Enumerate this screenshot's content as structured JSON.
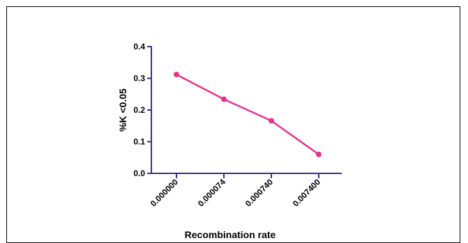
{
  "chart_data": {
    "type": "line",
    "title": "",
    "xlabel": "Recombination rate",
    "ylabel": "%K <0.05",
    "categories": [
      "0.000000",
      "0.000074",
      "0.000740",
      "0.007400"
    ],
    "series": [
      {
        "values": [
          0.312,
          0.234,
          0.166,
          0.06
        ],
        "color": "#e8338e"
      }
    ],
    "ylim": [
      0,
      0.4
    ],
    "yticks": [
      "0.0",
      "0.1",
      "0.2",
      "0.3",
      "0.4"
    ],
    "ytick_values": [
      0,
      0.1,
      0.2,
      0.3,
      0.4
    ],
    "grid": false,
    "axis_color": "#2e3192"
  }
}
